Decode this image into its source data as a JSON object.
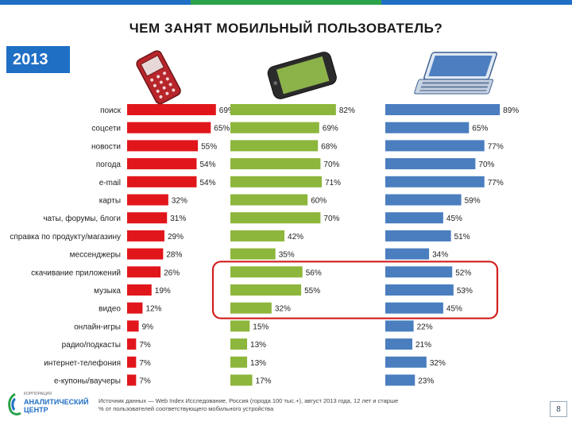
{
  "title": "ЧЕМ ЗАНЯТ МОБИЛЬНЫЙ ПОЛЬЗОВАТЕЛЬ?",
  "year": "2013",
  "colors": {
    "accent": "#1f6fc5",
    "feature_phone": "#e1161b",
    "smartphone": "#8db63c",
    "tablet": "#4a7ebf",
    "highlight": "#d41e1e"
  },
  "devices": [
    "feature-phone",
    "smartphone",
    "tablet"
  ],
  "chart_data": {
    "type": "bar",
    "title": "ЧЕМ ЗАНЯТ МОБИЛЬНЫЙ ПОЛЬЗОВАТЕЛЬ?",
    "categories": [
      "поиск",
      "соцсети",
      "новости",
      "погода",
      "e-mail",
      "карты",
      "чаты, форумы, блоги",
      "справка по продукту/магазину",
      "мессенджеры",
      "скачивание приложений",
      "музыка",
      "видео",
      "онлайн-игры",
      "радио/подкасты",
      "интернет-телефония",
      "e-купоны/ваучеры"
    ],
    "series": [
      {
        "name": "Мобильный телефон",
        "values": [
          69,
          65,
          55,
          54,
          54,
          32,
          31,
          29,
          28,
          26,
          19,
          12,
          9,
          7,
          7,
          7
        ],
        "labels": [
          "69%",
          "65%",
          "55%",
          "54%",
          "54%",
          "32%",
          "31%",
          "29%",
          "28%",
          "26%",
          "19%",
          "12%",
          "9%",
          "7%",
          "7%",
          "7%"
        ]
      },
      {
        "name": "Смартфон",
        "values": [
          82,
          69,
          68,
          70,
          71,
          60,
          70,
          42,
          35,
          56,
          55,
          32,
          15,
          13,
          13,
          17
        ],
        "labels": [
          "82%",
          "69%",
          "68%",
          "70%",
          "71%",
          "60%",
          "70%",
          "42%",
          "35%",
          "56%",
          "55%",
          "32%",
          "15%",
          "13%",
          "13%",
          "17%"
        ]
      },
      {
        "name": "Планшет",
        "values": [
          89,
          65,
          77,
          70,
          77,
          59,
          45,
          51,
          34,
          52,
          53,
          45,
          22,
          21,
          32,
          23
        ],
        "labels": [
          "89%",
          "65%",
          "77%",
          "70%",
          "77%",
          "59%",
          "45%",
          "51%",
          "34%",
          "52%",
          "53%",
          "45%",
          "22%",
          "21%",
          "32%",
          "23%"
        ]
      }
    ],
    "highlighted_categories": [
      "скачивание приложений",
      "музыка",
      "видео"
    ]
  },
  "footer": {
    "logo_small": "КОРПОРАЦИЯ",
    "logo_line1": "АНАЛИТИЧЕСКИЙ",
    "logo_line2": "ЦЕНТР",
    "source_line1": "Источник данных — Web Index Исследование, Россия (города 100 тыс.+), август 2013 года, 12 лет и старше",
    "source_line2": "% от пользователей соответствующего мобильного устройства",
    "page": "8"
  }
}
